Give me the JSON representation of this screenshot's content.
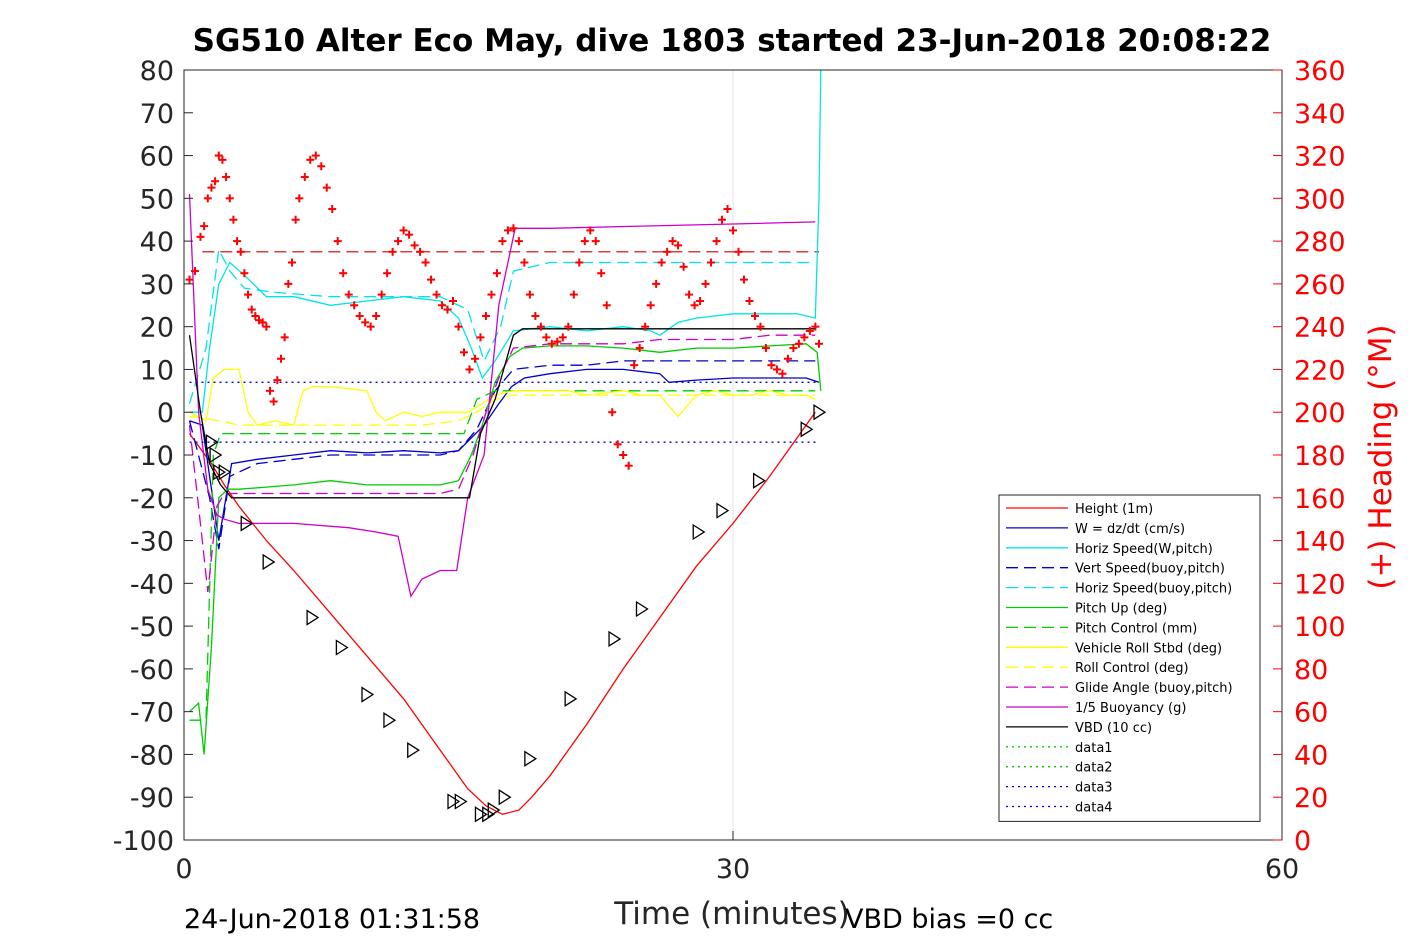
{
  "title": "SG510 Alter Eco May, dive 1803 started 23-Jun-2018 20:08:22",
  "footer": {
    "left_text": "24-Jun-2018 01:31:58",
    "right_text": "VBD bias =0 cc"
  },
  "chart_data": {
    "type": "line",
    "title": "SG510 Alter Eco May, dive 1803 started 23-Jun-2018 20:08:22",
    "xlabel": "Time (minutes)",
    "ylabel_left": "",
    "ylabel_right": "(+) Heading (°M)",
    "xlim": [
      0,
      60
    ],
    "ylim_left": [
      -100,
      80
    ],
    "ylim_right": [
      0,
      360
    ],
    "xticks": [
      0,
      30,
      60
    ],
    "yticks_left": [
      -100,
      -90,
      -80,
      -70,
      -60,
      -50,
      -40,
      -30,
      -20,
      -10,
      0,
      10,
      20,
      30,
      40,
      50,
      60,
      70,
      80
    ],
    "yticks_right": [
      0,
      20,
      40,
      60,
      80,
      100,
      120,
      140,
      160,
      180,
      200,
      220,
      240,
      260,
      280,
      300,
      320,
      340,
      360
    ],
    "grid": "x-only",
    "legend_position": "lower-right",
    "series": [
      {
        "name": "Height (1m)",
        "color": "#ff0000",
        "dash": "solid",
        "x": [
          0.3,
          1.5,
          2.2,
          3,
          4.5,
          6,
          8,
          10,
          12,
          14,
          15.5,
          16.5,
          17.4,
          18.3,
          19,
          20,
          22,
          24,
          26,
          28,
          30,
          32,
          34.5
        ],
        "y": [
          -5,
          -12,
          -17,
          -22,
          -30,
          -37,
          -47,
          -57,
          -67,
          -79,
          -88,
          -92,
          -94,
          -93,
          -90,
          -85,
          -73,
          -60,
          -48,
          -36,
          -26,
          -15,
          0
        ]
      },
      {
        "name": "W = dz/dt (cm/s)",
        "color": "#0000cc",
        "dash": "solid",
        "x": [
          0.3,
          1,
          1.4,
          1.9,
          2.6,
          4,
          6,
          8,
          10,
          12,
          14,
          15,
          15.7,
          16.4,
          17.2,
          17.9,
          18.6,
          20,
          22,
          24,
          26,
          26.5,
          28,
          30,
          32,
          34,
          34.7
        ],
        "y": [
          -2,
          -3,
          -15,
          -30,
          -12,
          -11,
          -10,
          -9,
          -9.5,
          -9,
          -9.5,
          -9,
          -6,
          -3,
          2,
          6,
          8,
          9,
          10,
          10,
          9,
          7,
          7.5,
          8,
          8,
          8,
          7
        ]
      },
      {
        "name": "Horiz Speed(W,pitch)",
        "color": "#00e5e5",
        "dash": "solid",
        "x": [
          0.3,
          1,
          1.4,
          1.9,
          2.5,
          3.3,
          4.5,
          6,
          8,
          10,
          12,
          14,
          15,
          15.7,
          16.3,
          17,
          18,
          20,
          22,
          24,
          25.5,
          26,
          27,
          28,
          30,
          32,
          33.5,
          34.5,
          34.7,
          34.8
        ],
        "y": [
          0,
          0,
          15,
          30,
          35,
          32,
          27,
          27,
          25,
          26,
          27,
          26,
          22,
          15,
          8,
          12,
          19,
          20,
          19,
          20,
          19,
          18,
          21,
          22,
          23,
          23,
          23,
          22,
          50,
          80
        ]
      },
      {
        "name": "Vert Speed(buoy,pitch)",
        "color": "#0000cc",
        "dash": "dash",
        "x": [
          0.3,
          1.4,
          1.9,
          2.5,
          4,
          6,
          8,
          10,
          12,
          14,
          15,
          16,
          17,
          18,
          20,
          22,
          24,
          26,
          28,
          30,
          32,
          34.5
        ],
        "y": [
          -2,
          -20,
          -32,
          -15,
          -12,
          -11,
          -10,
          -10,
          -10,
          -10,
          -9,
          -4,
          5,
          10,
          11,
          11,
          12,
          12,
          12,
          12,
          12,
          12
        ]
      },
      {
        "name": "Horiz Speed(buoy,pitch)",
        "color": "#00e5e5",
        "dash": "dash",
        "x": [
          0.3,
          1.2,
          1.9,
          2.5,
          3.3,
          5,
          8,
          11,
          14,
          15.5,
          16.4,
          17.3,
          18,
          20,
          22,
          24,
          26,
          28,
          30,
          32,
          34.5
        ],
        "y": [
          2,
          15,
          38,
          33,
          29,
          28,
          27,
          27,
          27,
          24,
          12,
          20,
          33,
          35,
          35,
          35,
          35,
          35,
          35,
          35,
          35
        ]
      },
      {
        "name": "Pitch Up (deg)",
        "color": "#00cc00",
        "dash": "solid",
        "x": [
          0.3,
          0.8,
          1.1,
          1.5,
          1.9,
          2.4,
          3,
          4.5,
          6,
          8,
          10,
          12,
          14,
          15,
          15.7,
          16.3,
          17,
          17.8,
          18.5,
          20,
          22,
          24,
          26,
          28,
          30,
          32,
          34,
          34.6,
          34.8
        ],
        "y": [
          -70,
          -68,
          -80,
          -55,
          -20,
          -18,
          -18,
          -17.5,
          -17,
          -16,
          -17,
          -17,
          -17,
          -16,
          -10,
          -3,
          7,
          13,
          15,
          15.5,
          15.5,
          15,
          14,
          15,
          15,
          15.5,
          16,
          14,
          5
        ]
      },
      {
        "name": "Pitch Control (mm)",
        "color": "#00cc00",
        "dash": "dash",
        "x": [
          0.3,
          1.2,
          1.6,
          2,
          2.4,
          6,
          10,
          14,
          15.3,
          16,
          17,
          18,
          20,
          24,
          28,
          32,
          34.5
        ],
        "y": [
          -72,
          -72,
          -10,
          -5,
          -5,
          -5,
          -5,
          -5,
          -5,
          3,
          5,
          5,
          5,
          5,
          5,
          5,
          5
        ]
      },
      {
        "name": "Vehicle Roll Stbd (deg)",
        "color": "#ffff00",
        "dash": "solid",
        "x": [
          0.3,
          1.2,
          1.6,
          2.2,
          3,
          3.5,
          4,
          5,
          6,
          6.5,
          7,
          8,
          10,
          10.5,
          11,
          12,
          13,
          14,
          14.5,
          15.5,
          16.3,
          17,
          18,
          19,
          20,
          21,
          22,
          24,
          25,
          26,
          27,
          28,
          29,
          30,
          31,
          32,
          33,
          34,
          34.5
        ],
        "y": [
          0,
          -2,
          8,
          10,
          10,
          0,
          -3,
          -2,
          -3,
          5,
          6,
          6,
          5,
          0,
          -2,
          0,
          -1,
          0,
          0,
          0,
          2,
          4,
          5,
          5,
          5,
          5,
          4,
          5,
          4,
          4,
          -1,
          4,
          5,
          4,
          4,
          5,
          4,
          4,
          3
        ]
      },
      {
        "name": "Roll Control (deg)",
        "color": "#ffff00",
        "dash": "dash",
        "x": [
          0.3,
          2,
          3,
          5,
          7,
          9,
          11,
          13,
          15,
          16,
          17,
          18,
          20,
          22,
          24,
          26,
          28,
          30,
          32,
          34.5
        ],
        "y": [
          -1,
          -2,
          -3,
          -3,
          -3,
          -3,
          -3,
          -3,
          -2,
          0,
          3,
          4,
          4,
          4,
          4,
          4,
          4,
          4,
          4,
          4
        ]
      },
      {
        "name": "Glide Angle (buoy,pitch)",
        "color": "#cc00cc",
        "dash": "dash",
        "x": [
          0.3,
          1,
          1.3,
          1.8,
          2.2,
          3,
          6,
          8,
          10,
          12,
          14,
          15,
          15.8,
          16.5,
          17.2,
          18,
          20,
          22,
          24,
          26,
          28,
          30,
          32,
          34.5
        ],
        "y": [
          -3,
          -30,
          -42,
          -22,
          -19,
          -19,
          -19,
          -19,
          -19,
          -19,
          -19,
          -18,
          -10,
          0,
          8,
          15,
          16,
          16,
          16,
          17,
          17,
          17,
          18,
          18
        ]
      },
      {
        "name": "1/5 Buoyancy (g)",
        "color": "#cc00cc",
        "dash": "solid",
        "x": [
          0.3,
          0.8,
          1.3,
          1.8,
          2.2,
          3,
          6,
          9,
          10.5,
          11.7,
          12.4,
          13,
          14,
          14.9,
          15.5,
          16.4,
          17.2,
          18.1,
          20,
          25,
          30,
          34.5
        ],
        "y": [
          51,
          0,
          -18,
          -24,
          -25,
          -26,
          -26,
          -27,
          -28,
          -29,
          -43,
          -39,
          -37,
          -37,
          -20,
          -10,
          25,
          43,
          43,
          43.5,
          44,
          44.5
        ]
      },
      {
        "name": "VBD (10 cc)",
        "color": "#000000",
        "dash": "solid",
        "x": [
          0.3,
          0.9,
          1.4,
          2,
          2.6,
          4,
          8,
          12,
          14,
          15,
          15.6,
          16.2,
          17,
          18,
          18.5,
          20,
          25,
          30,
          34.5
        ],
        "y": [
          18,
          0,
          -12,
          -17,
          -20,
          -20,
          -20,
          -20,
          -20,
          -20,
          -20,
          -5,
          3,
          18,
          19.5,
          19.5,
          19.5,
          19.5,
          19.5
        ]
      },
      {
        "name": "data1",
        "color": "#00cc00",
        "dash": "dot",
        "x": [],
        "y": []
      },
      {
        "name": "data2",
        "color": "#00cc00",
        "dash": "dot",
        "x": [],
        "y": []
      },
      {
        "name": "data3",
        "color": "#0000cc",
        "dash": "dot",
        "x": [
          0.3,
          34.7
        ],
        "y": [
          7,
          7
        ]
      },
      {
        "name": "data4",
        "color": "#0000cc",
        "dash": "dot",
        "x": [
          0.3,
          34.7
        ],
        "y": [
          -7,
          -7
        ]
      }
    ],
    "reference_lines": [
      {
        "axis": "right",
        "value": 275,
        "color": "#cc0000",
        "dash": "dash",
        "x_range": [
          1,
          34.7
        ]
      }
    ],
    "heading_points": {
      "axis": "right",
      "marker": "+",
      "color": "#ff0000",
      "x": [
        0.3,
        0.6,
        0.9,
        1.1,
        1.3,
        1.5,
        1.7,
        1.9,
        2.1,
        2.3,
        2.5,
        2.7,
        2.9,
        3.1,
        3.3,
        3.5,
        3.7,
        3.9,
        4.1,
        4.3,
        4.5,
        4.7,
        4.9,
        5.1,
        5.3,
        5.5,
        5.7,
        5.9,
        6.1,
        6.3,
        6.6,
        6.9,
        7.2,
        7.5,
        7.8,
        8.1,
        8.4,
        8.7,
        9.0,
        9.3,
        9.6,
        9.9,
        10.2,
        10.5,
        10.8,
        11.1,
        11.4,
        11.7,
        12.0,
        12.3,
        12.6,
        12.9,
        13.2,
        13.5,
        13.8,
        14.1,
        14.4,
        14.7,
        15.0,
        15.3,
        15.6,
        15.9,
        16.2,
        16.5,
        16.8,
        17.1,
        17.4,
        17.7,
        18.0,
        18.3,
        18.6,
        18.9,
        19.2,
        19.5,
        19.8,
        20.1,
        20.4,
        20.7,
        21.0,
        21.3,
        21.6,
        21.9,
        22.2,
        22.5,
        22.8,
        23.1,
        23.4,
        23.7,
        24.0,
        24.3,
        24.6,
        24.9,
        25.2,
        25.5,
        25.8,
        26.1,
        26.4,
        26.7,
        27.0,
        27.3,
        27.6,
        27.9,
        28.2,
        28.5,
        28.8,
        29.1,
        29.4,
        29.7,
        30.0,
        30.3,
        30.6,
        30.9,
        31.2,
        31.5,
        31.8,
        32.1,
        32.4,
        32.7,
        33.0,
        33.3,
        33.6,
        33.9,
        34.2,
        34.5,
        34.7
      ],
      "y": [
        262,
        266,
        282,
        287,
        300,
        305,
        308,
        320,
        318,
        310,
        300,
        290,
        280,
        275,
        265,
        255,
        248,
        245,
        243,
        242,
        240,
        210,
        205,
        215,
        225,
        235,
        260,
        270,
        290,
        300,
        310,
        318,
        320,
        315,
        305,
        295,
        280,
        265,
        255,
        250,
        245,
        242,
        240,
        245,
        255,
        265,
        275,
        280,
        285,
        283,
        278,
        275,
        270,
        262,
        255,
        250,
        248,
        252,
        240,
        228,
        220,
        225,
        235,
        245,
        255,
        265,
        280,
        285,
        286,
        280,
        270,
        255,
        245,
        240,
        235,
        232,
        233,
        235,
        240,
        255,
        270,
        280,
        285,
        280,
        265,
        250,
        200,
        185,
        180,
        175,
        222,
        230,
        240,
        250,
        260,
        270,
        275,
        280,
        278,
        268,
        255,
        250,
        252,
        260,
        270,
        280,
        290,
        295,
        285,
        275,
        262,
        252,
        245,
        240,
        230,
        222,
        220,
        218,
        225,
        230,
        232,
        235,
        238,
        240,
        232
      ]
    },
    "triangle_markers": {
      "x": [
        1.5,
        1.7,
        1.9,
        2.2,
        3.4,
        4.6,
        7,
        8.6,
        10,
        11.2,
        12.5,
        14.7,
        15.1,
        16.2,
        16.6,
        16.9,
        17.5,
        18.9,
        21.1,
        23.5,
        25,
        28.1,
        29.4,
        31.4,
        34,
        34.7
      ],
      "y": [
        -7,
        -10,
        -14,
        -14,
        -26,
        -35,
        -48,
        -55,
        -66,
        -72,
        -79,
        -91,
        -91,
        -94,
        -94,
        -93,
        -90,
        -81,
        -67,
        -53,
        -46,
        -28,
        -23,
        -16,
        -4,
        0
      ]
    }
  }
}
